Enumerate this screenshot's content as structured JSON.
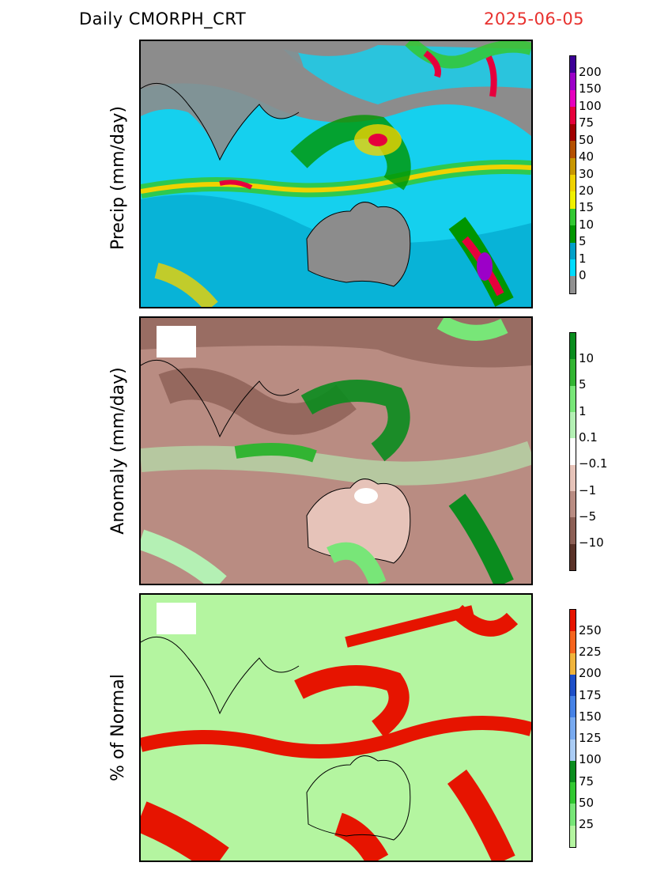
{
  "header": {
    "title": "Daily CMORPH_CRT",
    "date": "2025-06-05"
  },
  "panels": [
    {
      "ylabel": "Precip (mm/day)",
      "colorbar": {
        "labels": [
          "200",
          "150",
          "100",
          "75",
          "50",
          "40",
          "30",
          "20",
          "15",
          "10",
          "5",
          "1",
          "0"
        ],
        "colors": [
          "#3c0096",
          "#9c00c8",
          "#e600be",
          "#e6003c",
          "#a00000",
          "#b45000",
          "#c89600",
          "#f0d200",
          "#f0f000",
          "#32c832",
          "#009600",
          "#00a0c8",
          "#00dcff",
          "#909090"
        ]
      }
    },
    {
      "ylabel": "Anomaly (mm/day)",
      "colorbar": {
        "labels": [
          "10",
          "5",
          "1",
          "0.1",
          "−0.1",
          "−1",
          "−5",
          "−10"
        ],
        "colors": [
          "#0a8c1e",
          "#32b432",
          "#78e678",
          "#b4f0b4",
          "#ffffff",
          "#e6c3b9",
          "#b98c82",
          "#8c5f55",
          "#5a3228"
        ]
      }
    },
    {
      "ylabel": "% of Normal",
      "colorbar": {
        "labels": [
          "250",
          "225",
          "200",
          "175",
          "150",
          "125",
          "100",
          "75",
          "50",
          "25"
        ],
        "colors": [
          "#e61400",
          "#f5641e",
          "#f0b43c",
          "#1e50c8",
          "#4682e6",
          "#78aaf0",
          "#aaccf5",
          "#0a8c1e",
          "#32c832",
          "#78e678",
          "#b4f5a0"
        ]
      }
    }
  ]
}
